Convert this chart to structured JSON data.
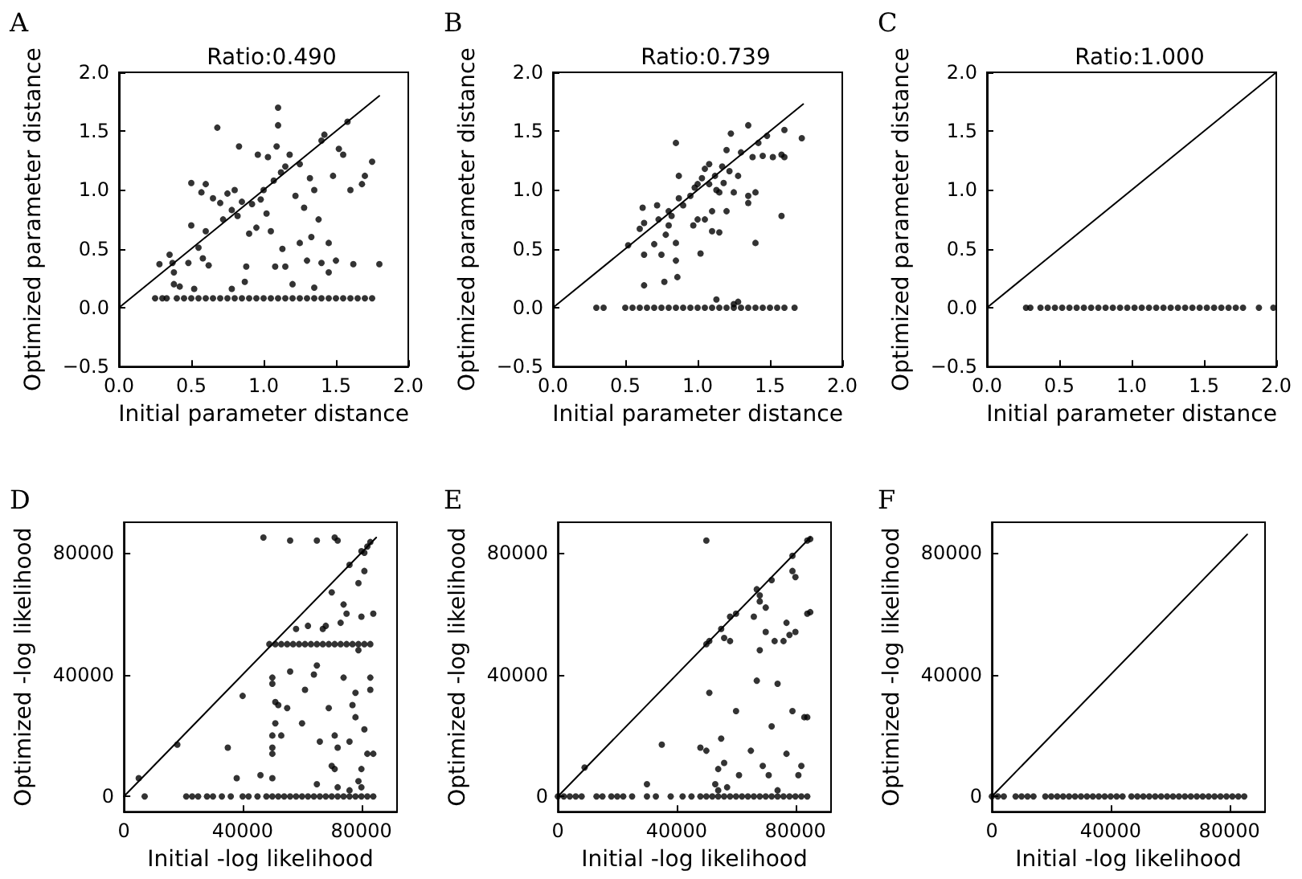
{
  "chart_data": [
    {
      "type": "scatter",
      "title": "Ratio:0.490",
      "annotations": [
        "A"
      ],
      "xlabel": "Initial parameter distance",
      "ylabel": "Optimized parameter distance",
      "xlim": [
        0,
        2
      ],
      "ylim": [
        -0.5,
        2
      ],
      "xticks": [
        {
          "value": 0,
          "label": "0.0"
        },
        {
          "value": 0.5,
          "label": "0.5"
        },
        {
          "value": 1,
          "label": "1.0"
        },
        {
          "value": 1.5,
          "label": "1.5"
        },
        {
          "value": 2,
          "label": "2.0"
        }
      ],
      "yticks": [
        {
          "value": -0.5,
          "label": "−0.5"
        },
        {
          "value": 0,
          "label": "0.0"
        },
        {
          "value": 0.5,
          "label": "0.5"
        },
        {
          "value": 1,
          "label": "1.0"
        },
        {
          "value": 1.5,
          "label": "1.5"
        },
        {
          "value": 2,
          "label": "2.0"
        }
      ],
      "grid": false,
      "series": [
        {
          "type": "scatter",
          "color": "#000000",
          "marker": "circle",
          "x": [
            0.28,
            0.35,
            0.37,
            0.38,
            0.38,
            0.42,
            0.48,
            0.5,
            0.5,
            0.52,
            0.55,
            0.57,
            0.58,
            0.6,
            0.6,
            0.62,
            0.65,
            0.68,
            0.7,
            0.72,
            0.75,
            0.78,
            0.78,
            0.8,
            0.82,
            0.83,
            0.85,
            0.87,
            0.88,
            0.9,
            0.92,
            0.95,
            0.96,
            0.98,
            1.0,
            1.02,
            1.03,
            1.05,
            1.07,
            1.08,
            1.09,
            1.1,
            1.1,
            1.12,
            1.13,
            1.15,
            1.15,
            1.18,
            1.2,
            1.22,
            1.25,
            1.25,
            1.28,
            1.3,
            1.32,
            1.33,
            1.35,
            1.35,
            1.38,
            1.4,
            1.4,
            1.42,
            1.45,
            1.45,
            1.48,
            1.5,
            1.52,
            1.55,
            1.58,
            1.6,
            1.62,
            1.68,
            1.7,
            1.75,
            1.8,
            0.25,
            0.3,
            0.33,
            0.4,
            0.45,
            0.5,
            0.55,
            0.6,
            0.65,
            0.7,
            0.75,
            0.8,
            0.85,
            0.9,
            0.95,
            1.0,
            1.05,
            1.1,
            1.15,
            1.2,
            1.25,
            1.3,
            1.35,
            1.4,
            1.45,
            1.5,
            1.55,
            1.6,
            1.65,
            1.7,
            1.75
          ],
          "values": [
            0.37,
            0.45,
            0.38,
            0.3,
            0.2,
            0.18,
            0.38,
            0.7,
            1.06,
            0.16,
            0.51,
            0.98,
            0.42,
            1.05,
            0.65,
            0.36,
            0.93,
            1.53,
            0.89,
            0.75,
            0.97,
            0.83,
            0.16,
            1.0,
            0.78,
            1.37,
            0.9,
            0.22,
            0.35,
            0.63,
            0.88,
            0.68,
            1.3,
            0.92,
            1.0,
            0.8,
            1.28,
            0.65,
            1.08,
            0.35,
            1.37,
            1.7,
            1.55,
            1.15,
            0.5,
            1.2,
            0.35,
            1.3,
            0.2,
            0.95,
            0.55,
            1.22,
            0.85,
            0.4,
            1.1,
            0.6,
            1.0,
            0.17,
            0.75,
            1.42,
            0.38,
            1.47,
            0.3,
            0.55,
            1.12,
            0.4,
            1.35,
            1.3,
            1.58,
            1.0,
            0.37,
            1.05,
            1.12,
            1.24,
            0.37,
            0.08,
            0.08,
            0.08,
            0.08,
            0.08,
            0.08,
            0.08,
            0.08,
            0.08,
            0.08,
            0.08,
            0.08,
            0.08,
            0.08,
            0.08,
            0.08,
            0.08,
            0.08,
            0.08,
            0.08,
            0.08,
            0.08,
            0.08,
            0.08,
            0.08,
            0.08,
            0.08,
            0.08,
            0.08,
            0.08,
            0.08
          ]
        },
        {
          "type": "line",
          "color": "#000000",
          "marker": "none",
          "x": [
            0,
            1.8
          ],
          "values": [
            0,
            1.8
          ]
        }
      ]
    },
    {
      "type": "scatter",
      "title": "Ratio:0.739",
      "annotations": [
        "B"
      ],
      "xlabel": "Initial parameter distance",
      "ylabel": "Optimized parameter distance",
      "xlim": [
        0,
        2
      ],
      "ylim": [
        -0.5,
        2
      ],
      "xticks": [
        {
          "value": 0,
          "label": "0.0"
        },
        {
          "value": 0.5,
          "label": "0.5"
        },
        {
          "value": 1,
          "label": "1.0"
        },
        {
          "value": 1.5,
          "label": "1.5"
        },
        {
          "value": 2,
          "label": "2.0"
        }
      ],
      "yticks": [
        {
          "value": -0.5,
          "label": "−0.5"
        },
        {
          "value": 0,
          "label": "0.0"
        },
        {
          "value": 0.5,
          "label": "0.5"
        },
        {
          "value": 1,
          "label": "1.0"
        },
        {
          "value": 1.5,
          "label": "1.5"
        },
        {
          "value": 2,
          "label": "2.0"
        }
      ],
      "grid": false,
      "series": [
        {
          "type": "scatter",
          "color": "#000000",
          "marker": "circle",
          "x": [
            0.52,
            0.6,
            0.62,
            0.63,
            0.63,
            0.63,
            0.7,
            0.72,
            0.73,
            0.75,
            0.77,
            0.78,
            0.8,
            0.8,
            0.82,
            0.85,
            0.85,
            0.85,
            0.86,
            0.87,
            0.87,
            0.9,
            0.95,
            0.97,
            0.98,
            1.0,
            1.0,
            1.02,
            1.03,
            1.05,
            1.05,
            1.08,
            1.08,
            1.1,
            1.1,
            1.12,
            1.13,
            1.15,
            1.15,
            1.17,
            1.18,
            1.2,
            1.2,
            1.22,
            1.23,
            1.25,
            1.28,
            1.3,
            1.35,
            1.35,
            1.35,
            1.38,
            1.4,
            1.4,
            1.42,
            1.45,
            1.48,
            1.52,
            1.58,
            1.58,
            1.6,
            1.6,
            1.72,
            1.13,
            1.25,
            1.28,
            0.3,
            0.35,
            0.5,
            0.55,
            0.6,
            0.65,
            0.7,
            0.75,
            0.8,
            0.85,
            0.9,
            0.95,
            1.0,
            1.05,
            1.1,
            1.15,
            1.2,
            1.25,
            1.3,
            1.35,
            1.4,
            1.45,
            1.5,
            1.55,
            1.6,
            1.67
          ],
          "values": [
            0.53,
            0.67,
            0.85,
            0.72,
            0.45,
            0.19,
            0.54,
            0.87,
            0.75,
            0.45,
            0.22,
            0.62,
            0.82,
            0.7,
            0.78,
            1.4,
            0.55,
            0.4,
            0.26,
            1.12,
            0.93,
            0.87,
            0.95,
            0.7,
            1.02,
            1.05,
            0.75,
            0.46,
            1.1,
            1.18,
            0.75,
            1.05,
            1.22,
            0.65,
            0.82,
            1.12,
            1.0,
            0.64,
            0.98,
            1.2,
            1.06,
            1.34,
            0.82,
            1.16,
            1.48,
            0.98,
            1.12,
            1.32,
            1.55,
            0.89,
            0.95,
            1.28,
            0.55,
            0.98,
            1.4,
            1.29,
            1.46,
            1.28,
            1.3,
            0.78,
            1.51,
            1.28,
            1.44,
            0.07,
            0.03,
            0.05,
            0,
            0,
            0,
            0,
            0,
            0,
            0,
            0,
            0,
            0,
            0,
            0,
            0,
            0,
            0,
            0,
            0,
            0,
            0,
            0,
            0,
            0,
            0,
            0,
            0,
            0
          ]
        },
        {
          "type": "line",
          "color": "#000000",
          "marker": "none",
          "x": [
            0,
            1.73
          ],
          "values": [
            0,
            1.73
          ]
        }
      ]
    },
    {
      "type": "scatter",
      "title": "Ratio:1.000",
      "annotations": [
        "C"
      ],
      "xlabel": "Initial parameter distance",
      "ylabel": "Optimized parameter distance",
      "xlim": [
        0,
        2
      ],
      "ylim": [
        -0.5,
        2
      ],
      "xticks": [
        {
          "value": 0,
          "label": "0.0"
        },
        {
          "value": 0.5,
          "label": "0.5"
        },
        {
          "value": 1,
          "label": "1.0"
        },
        {
          "value": 1.5,
          "label": "1.5"
        },
        {
          "value": 2,
          "label": "2.0"
        }
      ],
      "yticks": [
        {
          "value": -0.5,
          "label": "−0.5"
        },
        {
          "value": 0,
          "label": "0.0"
        },
        {
          "value": 0.5,
          "label": "0.5"
        },
        {
          "value": 1,
          "label": "1.0"
        },
        {
          "value": 1.5,
          "label": "1.5"
        },
        {
          "value": 2,
          "label": "2.0"
        }
      ],
      "grid": false,
      "series": [
        {
          "type": "scatter",
          "color": "#000000",
          "marker": "circle",
          "x": [
            0.27,
            0.3,
            0.37,
            0.42,
            0.47,
            0.52,
            0.57,
            0.62,
            0.67,
            0.72,
            0.77,
            0.82,
            0.87,
            0.92,
            0.97,
            1.02,
            1.07,
            1.12,
            1.17,
            1.22,
            1.27,
            1.32,
            1.37,
            1.42,
            1.47,
            1.52,
            1.57,
            1.62,
            1.67,
            1.72,
            1.77,
            1.88,
            1.98
          ],
          "values": [
            0,
            0,
            0,
            0,
            0,
            0,
            0,
            0,
            0,
            0,
            0,
            0,
            0,
            0,
            0,
            0,
            0,
            0,
            0,
            0,
            0,
            0,
            0,
            0,
            0,
            0,
            0,
            0,
            0,
            0,
            0,
            0,
            0
          ]
        },
        {
          "type": "line",
          "color": "#000000",
          "marker": "none",
          "x": [
            0,
            2
          ],
          "values": [
            0,
            2
          ]
        }
      ]
    },
    {
      "type": "scatter",
      "annotations": [
        "D"
      ],
      "xlabel": "Initial -log likelihood",
      "ylabel": "Optimized -log likelihood",
      "xlim": [
        0,
        92000
      ],
      "ylim": [
        -5000,
        90000
      ],
      "xticks": [
        0,
        40000,
        80000
      ],
      "yticks": [
        0,
        40000,
        80000
      ],
      "grid": false,
      "series": [
        {
          "type": "scatter",
          "color": "#000000",
          "marker": "circle",
          "x": [
            5000,
            18000,
            82000,
            83000,
            81000,
            80000,
            76000,
            70000,
            47000,
            56000,
            65000,
            71000,
            72000,
            35000,
            38000,
            40000,
            46000,
            50000,
            50000,
            51000,
            51000,
            50000,
            50000,
            50000,
            50000,
            52000,
            53000,
            55000,
            56000,
            58000,
            60000,
            61000,
            62000,
            65000,
            64000,
            66000,
            67000,
            68000,
            69000,
            70000,
            71000,
            71000,
            72000,
            73000,
            74000,
            74000,
            75000,
            76000,
            77000,
            78000,
            78000,
            79000,
            79000,
            80000,
            80000,
            81000,
            81000,
            82000,
            83000,
            83000,
            84000,
            84000,
            65000,
            72000,
            76000,
            79000,
            80000,
            49000,
            51000,
            53000,
            55000,
            57000,
            59000,
            61000,
            63000,
            65000,
            67000,
            69000,
            71000,
            73000,
            75000,
            77000,
            79000,
            81000,
            83000,
            7000,
            21000,
            23000,
            25000,
            28000,
            30000,
            33000,
            36000,
            40000,
            42000,
            45000,
            48000,
            50000,
            52000,
            54000,
            56000,
            58000,
            60000,
            62000,
            64000,
            66000,
            68000,
            70000,
            72000,
            74000,
            76000,
            78000,
            80000,
            82000,
            84000
          ],
          "values": [
            6000,
            17000,
            82000,
            83500,
            80000,
            80500,
            76000,
            67000,
            85000,
            84000,
            84000,
            85000,
            84000,
            16000,
            6000,
            33000,
            7000,
            39000,
            37000,
            31000,
            24000,
            20000,
            16000,
            14000,
            6000,
            30000,
            20000,
            29000,
            41000,
            55000,
            24000,
            35000,
            56000,
            43000,
            40000,
            18000,
            55000,
            56000,
            29000,
            10000,
            9000,
            20000,
            16000,
            57000,
            39000,
            63000,
            60000,
            18000,
            30000,
            34000,
            26000,
            70000,
            48000,
            9000,
            59000,
            22000,
            74000,
            14000,
            39000,
            35000,
            60000,
            14000,
            4000,
            3000,
            2000,
            5000,
            3000,
            50000,
            50000,
            50000,
            50000,
            50000,
            50000,
            50000,
            50000,
            50000,
            50000,
            50000,
            50000,
            50000,
            50000,
            50000,
            50000,
            50000,
            50000,
            0,
            0,
            0,
            0,
            0,
            0,
            0,
            0,
            0,
            0,
            0,
            0,
            0,
            0,
            0,
            0,
            0,
            0,
            0,
            0,
            0,
            0,
            0,
            0,
            0,
            0,
            0,
            0,
            0,
            0
          ]
        },
        {
          "type": "line",
          "color": "#000000",
          "marker": "none",
          "x": [
            0,
            85000
          ],
          "values": [
            0,
            85000
          ]
        }
      ]
    },
    {
      "type": "scatter",
      "annotations": [
        "E"
      ],
      "xlabel": "Initial -log likelihood",
      "ylabel": "Optimized -log likelihood",
      "xlim": [
        0,
        92000
      ],
      "ylim": [
        -5000,
        90000
      ],
      "xticks": [
        0,
        40000,
        80000
      ],
      "yticks": [
        0,
        40000,
        80000
      ],
      "grid": false,
      "series": [
        {
          "type": "scatter",
          "color": "#000000",
          "marker": "circle",
          "x": [
            9000,
            50000,
            51000,
            55000,
            58000,
            60000,
            67000,
            68000,
            68000,
            70000,
            72000,
            79000,
            79000,
            80000,
            84000,
            85000,
            84000,
            85000,
            50000,
            35000,
            48000,
            50000,
            51000,
            53000,
            54000,
            55000,
            56000,
            56000,
            58000,
            60000,
            61000,
            65000,
            66000,
            67000,
            68000,
            69000,
            70000,
            71000,
            72000,
            73000,
            74000,
            76000,
            77000,
            77000,
            78000,
            79000,
            80000,
            81000,
            82000,
            83000,
            84000,
            30000,
            54000,
            57000,
            74000,
            0,
            2000,
            4000,
            6000,
            8000,
            13000,
            15000,
            18000,
            20000,
            22000,
            25000,
            30000,
            33000,
            38000,
            42000,
            45000,
            48000,
            50000,
            52000,
            54000,
            56000,
            58000,
            60000,
            62000,
            64000,
            66000,
            68000,
            70000,
            72000,
            74000,
            76000,
            78000,
            80000,
            82000,
            84000
          ],
          "values": [
            9500,
            50000,
            51000,
            55000,
            59000,
            60000,
            68000,
            66000,
            64000,
            62000,
            71000,
            79000,
            74000,
            72000,
            84000,
            84500,
            60000,
            60500,
            84000,
            17000,
            16000,
            15000,
            34000,
            4000,
            9000,
            19000,
            11000,
            52000,
            51000,
            28000,
            7000,
            15000,
            59000,
            38000,
            48000,
            10000,
            54000,
            7000,
            23000,
            51000,
            37000,
            51000,
            57000,
            14000,
            53000,
            28000,
            54000,
            7000,
            10000,
            26000,
            26000,
            4000,
            2000,
            3000,
            2000,
            0,
            0,
            0,
            0,
            0,
            0,
            0,
            0,
            0,
            0,
            0,
            0,
            0,
            0,
            0,
            0,
            0,
            0,
            0,
            0,
            0,
            0,
            0,
            0,
            0,
            0,
            0,
            0,
            0,
            0,
            0,
            0,
            0,
            0,
            0
          ]
        },
        {
          "type": "line",
          "color": "#000000",
          "marker": "none",
          "x": [
            0,
            85000
          ],
          "values": [
            0,
            85000
          ]
        }
      ]
    },
    {
      "type": "scatter",
      "annotations": [
        "F"
      ],
      "xlabel": "Initial -log likelihood",
      "ylabel": "Optimized -log likelihood",
      "xlim": [
        0,
        92000
      ],
      "ylim": [
        -5000,
        90000
      ],
      "xticks": [
        0,
        40000,
        80000
      ],
      "yticks": [
        0,
        40000,
        80000
      ],
      "grid": false,
      "series": [
        {
          "type": "scatter",
          "color": "#000000",
          "marker": "circle",
          "x": [
            0,
            2000,
            4000,
            8000,
            10000,
            12000,
            14000,
            18000,
            20000,
            22000,
            24000,
            26000,
            28000,
            30000,
            32000,
            34000,
            36000,
            38000,
            40000,
            42000,
            44000,
            47000,
            49000,
            51000,
            53000,
            55000,
            57000,
            59000,
            61000,
            63000,
            65000,
            67000,
            69000,
            71000,
            73000,
            75000,
            77000,
            79000,
            81000,
            83000,
            85000
          ],
          "values": [
            0,
            0,
            0,
            0,
            0,
            0,
            0,
            0,
            0,
            0,
            0,
            0,
            0,
            0,
            0,
            0,
            0,
            0,
            0,
            0,
            0,
            0,
            0,
            0,
            0,
            0,
            0,
            0,
            0,
            0,
            0,
            0,
            0,
            0,
            0,
            0,
            0,
            0,
            0,
            0,
            0
          ]
        },
        {
          "type": "line",
          "color": "#000000",
          "marker": "none",
          "x": [
            0,
            86000
          ],
          "values": [
            0,
            86000
          ]
        }
      ]
    }
  ]
}
